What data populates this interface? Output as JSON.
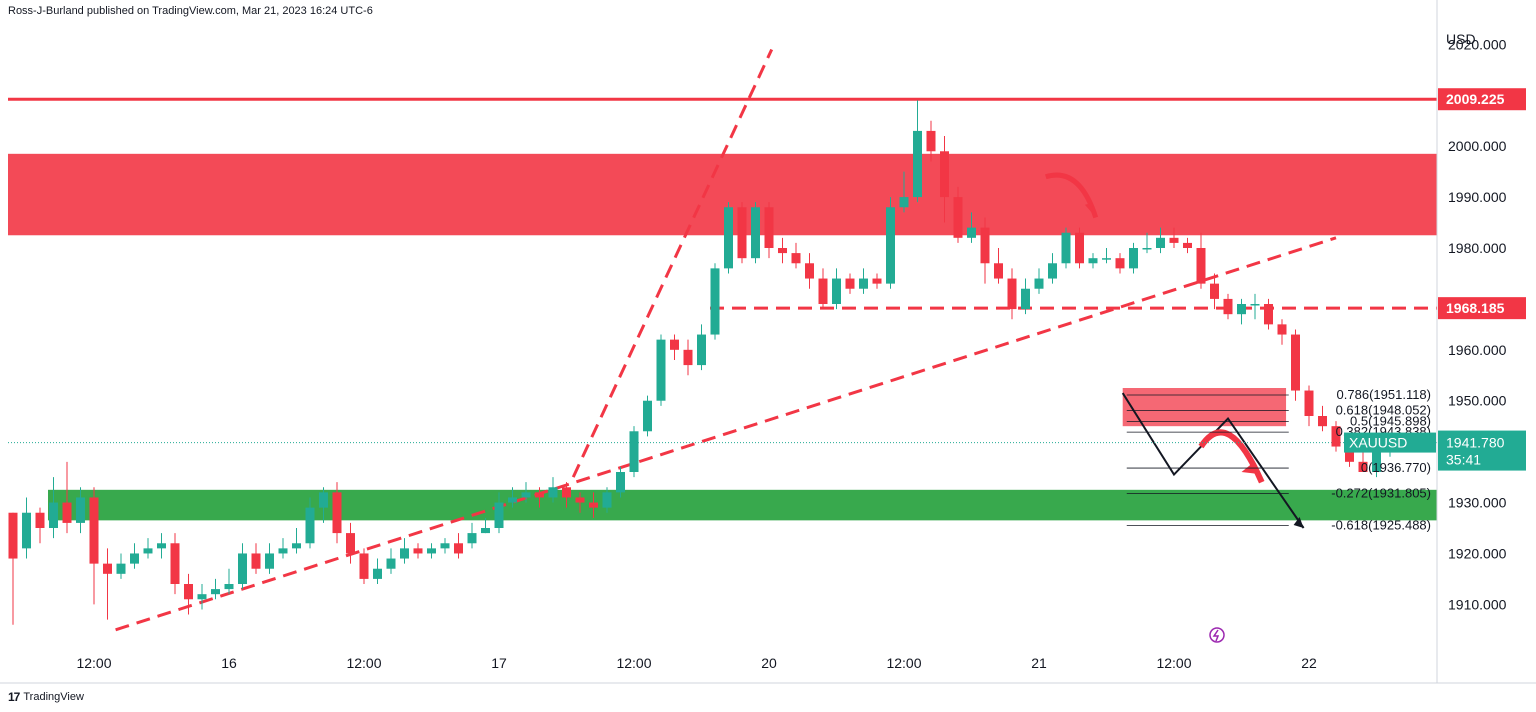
{
  "header": {
    "publisher_line": "Ross-J-Burland published on TradingView.com, Mar 21, 2023 16:24 UTC-6"
  },
  "footer": {
    "brand": "TradingView"
  },
  "chart_data": {
    "type": "candlestick",
    "symbol": "XAUUSD",
    "currency_label": "USD",
    "ylim": [
      1903,
      2024
    ],
    "y_ticks": [
      "2020.000",
      "2000.000",
      "1990.000",
      "1980.000",
      "1960.000",
      "1950.000",
      "1930.000",
      "1920.000",
      "1910.000"
    ],
    "x_ticks": [
      {
        "label": "12:00",
        "i": 6
      },
      {
        "label": "16",
        "i": 16
      },
      {
        "label": "12:00",
        "i": 26
      },
      {
        "label": "17",
        "i": 36
      },
      {
        "label": "12:00",
        "i": 46
      },
      {
        "label": "20",
        "i": 56
      },
      {
        "label": "12:00",
        "i": 66
      },
      {
        "label": "21",
        "i": 76
      },
      {
        "label": "12:00",
        "i": 86
      },
      {
        "label": "22",
        "i": 96
      }
    ],
    "last_price": "1941.780",
    "countdown": "35:41",
    "price_marks": [
      {
        "label": "2009.225",
        "value": 2009.225
      },
      {
        "label": "1968.185",
        "value": 1968.185
      }
    ],
    "zones": [
      {
        "name": "resistance-zone",
        "from": 1982.5,
        "to": 1998.5,
        "color": "#f23645"
      },
      {
        "name": "support-zone",
        "from": 1926.5,
        "to": 1932.5,
        "color": "#22a03a"
      }
    ],
    "fib_levels": [
      {
        "label": "0.786(1951.118)",
        "value": 1951.118
      },
      {
        "label": "0.618(1948.052)",
        "value": 1948.052
      },
      {
        "label": "0.5(1945.898)",
        "value": 1945.898
      },
      {
        "label": "0.382(1943.838)",
        "value": 1943.838
      },
      {
        "label": "0(1936.770)",
        "value": 1936.77
      },
      {
        "label": "-0.272(1931.805)",
        "value": 1931.805
      },
      {
        "label": "-0.618(1925.488)",
        "value": 1925.488
      }
    ],
    "candles": [
      [
        1928,
        1919,
        1928,
        1906
      ],
      [
        1921,
        1928,
        1931,
        1919
      ],
      [
        1928,
        1925,
        1929,
        1922
      ],
      [
        1925,
        1930,
        1935,
        1923
      ],
      [
        1930,
        1926,
        1938,
        1924
      ],
      [
        1926,
        1931,
        1933,
        1924
      ],
      [
        1931,
        1918,
        1933,
        1910
      ],
      [
        1918,
        1916,
        1921,
        1907
      ],
      [
        1916,
        1918,
        1920,
        1915
      ],
      [
        1918,
        1920,
        1922,
        1917
      ],
      [
        1920,
        1921,
        1923,
        1919
      ],
      [
        1921,
        1922,
        1924,
        1919
      ],
      [
        1922,
        1914,
        1924,
        1912
      ],
      [
        1914,
        1911,
        1916,
        1908
      ],
      [
        1911,
        1912,
        1914,
        1909
      ],
      [
        1912,
        1913,
        1915,
        1911
      ],
      [
        1913,
        1914,
        1917,
        1912
      ],
      [
        1914,
        1920,
        1922,
        1913
      ],
      [
        1920,
        1917,
        1922,
        1916
      ],
      [
        1917,
        1920,
        1922,
        1916
      ],
      [
        1920,
        1921,
        1923,
        1919
      ],
      [
        1921,
        1922,
        1925,
        1920
      ],
      [
        1922,
        1929,
        1931,
        1921
      ],
      [
        1929,
        1932,
        1933,
        1926
      ],
      [
        1932,
        1924,
        1934,
        1922
      ],
      [
        1924,
        1920,
        1926,
        1918
      ],
      [
        1920,
        1915,
        1921,
        1914
      ],
      [
        1915,
        1917,
        1919,
        1914
      ],
      [
        1917,
        1919,
        1921,
        1916
      ],
      [
        1919,
        1921,
        1923,
        1918
      ],
      [
        1921,
        1920,
        1922,
        1919
      ],
      [
        1920,
        1921,
        1922,
        1919
      ],
      [
        1921,
        1922,
        1923,
        1920
      ],
      [
        1922,
        1920,
        1924,
        1919
      ],
      [
        1922,
        1924,
        1926,
        1921
      ],
      [
        1924,
        1925,
        1927,
        1924
      ],
      [
        1925,
        1930,
        1932,
        1924
      ],
      [
        1930,
        1931,
        1933,
        1929
      ],
      [
        1931,
        1932,
        1934,
        1930
      ],
      [
        1932,
        1931,
        1933,
        1929
      ],
      [
        1931,
        1933,
        1935,
        1930
      ],
      [
        1933,
        1931,
        1934,
        1929
      ],
      [
        1931,
        1930,
        1932,
        1928
      ],
      [
        1930,
        1929,
        1932,
        1927
      ],
      [
        1929,
        1932,
        1933,
        1928
      ],
      [
        1932,
        1936,
        1937,
        1931
      ],
      [
        1936,
        1944,
        1945,
        1935
      ],
      [
        1944,
        1950,
        1951,
        1943
      ],
      [
        1950,
        1962,
        1963,
        1949
      ],
      [
        1962,
        1960,
        1963,
        1958
      ],
      [
        1960,
        1957,
        1962,
        1955
      ],
      [
        1957,
        1963,
        1965,
        1956
      ],
      [
        1963,
        1976,
        1977,
        1962
      ],
      [
        1976,
        1988,
        1989,
        1975
      ],
      [
        1988,
        1978,
        1989,
        1977
      ],
      [
        1978,
        1988,
        1989,
        1977
      ],
      [
        1988,
        1980,
        1989,
        1978
      ],
      [
        1980,
        1979,
        1982,
        1977
      ],
      [
        1979,
        1977,
        1981,
        1976
      ],
      [
        1977,
        1974,
        1979,
        1972
      ],
      [
        1974,
        1969,
        1976,
        1968
      ],
      [
        1969,
        1974,
        1976,
        1968
      ],
      [
        1974,
        1972,
        1975,
        1971
      ],
      [
        1972,
        1974,
        1976,
        1971
      ],
      [
        1974,
        1973,
        1975,
        1972
      ],
      [
        1973,
        1988,
        1990,
        1972
      ],
      [
        1988,
        1990,
        1995,
        1987
      ],
      [
        1990,
        2003,
        2009,
        1989
      ],
      [
        2003,
        1999,
        2005,
        1997
      ],
      [
        1999,
        1990,
        2002,
        1985
      ],
      [
        1990,
        1982,
        1992,
        1981
      ],
      [
        1982,
        1984,
        1987,
        1981
      ],
      [
        1984,
        1977,
        1986,
        1973
      ],
      [
        1977,
        1974,
        1980,
        1973
      ],
      [
        1974,
        1968,
        1976,
        1966
      ],
      [
        1968,
        1972,
        1974,
        1967
      ],
      [
        1972,
        1974,
        1976,
        1971
      ],
      [
        1974,
        1977,
        1979,
        1973
      ],
      [
        1977,
        1983,
        1984,
        1976
      ],
      [
        1983,
        1977,
        1984,
        1976
      ],
      [
        1977,
        1978,
        1979,
        1976
      ],
      [
        1978,
        1978,
        1980,
        1977
      ],
      [
        1978,
        1976,
        1979,
        1975
      ],
      [
        1976,
        1980,
        1981,
        1975
      ],
      [
        1980,
        1980,
        1983,
        1979
      ],
      [
        1980,
        1982,
        1984,
        1979
      ],
      [
        1982,
        1981,
        1984,
        1980
      ],
      [
        1981,
        1980,
        1982,
        1979
      ],
      [
        1980,
        1973,
        1983,
        1972
      ],
      [
        1973,
        1970,
        1975,
        1968
      ],
      [
        1970,
        1967,
        1971,
        1966
      ],
      [
        1967,
        1969,
        1970,
        1965
      ],
      [
        1969,
        1969,
        1971,
        1966
      ],
      [
        1969,
        1965,
        1970,
        1964
      ],
      [
        1965,
        1963,
        1966,
        1961
      ],
      [
        1963,
        1952,
        1964,
        1950
      ],
      [
        1952,
        1947,
        1953,
        1945
      ],
      [
        1947,
        1945,
        1949,
        1944
      ],
      [
        1945,
        1941,
        1946,
        1940
      ],
      [
        1941,
        1938,
        1943,
        1937
      ],
      [
        1938,
        1936,
        1941,
        1936
      ],
      [
        1936,
        1940,
        1941,
        1935
      ],
      [
        1940,
        1942,
        1943,
        1939
      ]
    ]
  }
}
